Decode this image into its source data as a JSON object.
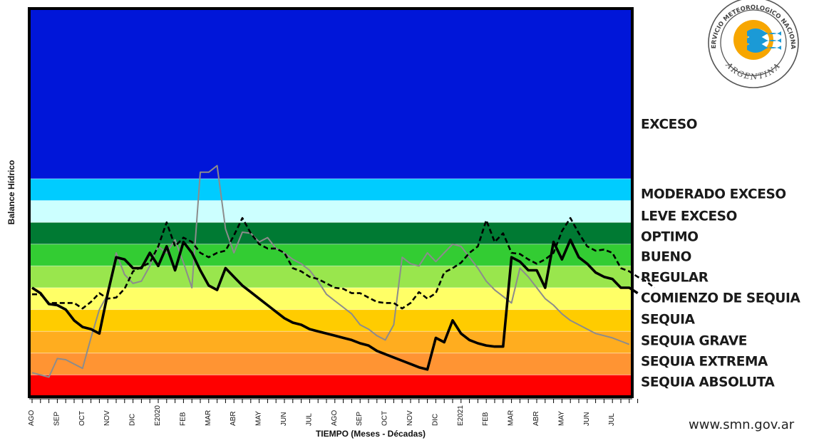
{
  "chart_data": {
    "type": "line",
    "xlabel": "TIEMPO (Meses - Décadas)",
    "ylabel": "Balance Hídrico",
    "x_tick_labels": [
      "AGO",
      "SEP",
      "OCT",
      "NOV",
      "DIC",
      "E2020",
      "FEB",
      "MAR",
      "ABR",
      "MAY",
      "JUN",
      "JUL",
      "AGO",
      "SEP",
      "OCT",
      "NOV",
      "DIC",
      "E2021",
      "FEB",
      "MAR",
      "ABR",
      "MAY",
      "JUN",
      "JUL"
    ],
    "decade_index_range": [
      0,
      72
    ],
    "y_scale": "category bands (Balance Hídrico level, 0 = bottom of SEQUIA ABSOLUTA, 19 = top of EXCESO)",
    "ylim": [
      0,
      19
    ],
    "bands": [
      {
        "label": "SEQUIA ABSOLUTA",
        "from": 0,
        "to": 1,
        "color": "#ff0000"
      },
      {
        "label": "SEQUIA EXTREMA",
        "from": 1,
        "to": 2,
        "color": "#ff9433"
      },
      {
        "label": "SEQUIA GRAVE",
        "from": 2,
        "to": 3,
        "color": "#ffad1f"
      },
      {
        "label": "SEQUIA",
        "from": 3,
        "to": 4,
        "color": "#ffcc00"
      },
      {
        "label": "COMIENZO DE SEQUIA",
        "from": 4,
        "to": 5,
        "color": "#ffff66"
      },
      {
        "label": "REGULAR",
        "from": 5,
        "to": 6,
        "color": "#99e64d"
      },
      {
        "label": "BUENO",
        "from": 6,
        "to": 7,
        "color": "#33cc33"
      },
      {
        "label": "OPTIMO",
        "from": 7,
        "to": 8,
        "color": "#007a33"
      },
      {
        "label": "LEVE EXCESO",
        "from": 8,
        "to": 9,
        "color": "#ccffff"
      },
      {
        "label": "MODERADO EXCESO",
        "from": 9,
        "to": 10,
        "color": "#00ccff"
      },
      {
        "label": "EXCESO",
        "from": 10,
        "to": 19,
        "color": "#0016d9"
      }
    ],
    "series": [
      {
        "style": "solid-black-thick",
        "color": "#000000",
        "points": [
          [
            0,
            5.0
          ],
          [
            1,
            4.75
          ],
          [
            2,
            4.25
          ],
          [
            3,
            4.2
          ],
          [
            4,
            4.0
          ],
          [
            5,
            3.5
          ],
          [
            6,
            3.2
          ],
          [
            7,
            3.1
          ],
          [
            8,
            2.9
          ],
          [
            9,
            4.75
          ],
          [
            10,
            6.4
          ],
          [
            11,
            6.3
          ],
          [
            12,
            5.9
          ],
          [
            13,
            5.9
          ],
          [
            14,
            6.6
          ],
          [
            15,
            6.0
          ],
          [
            16,
            6.9
          ],
          [
            17,
            5.8
          ],
          [
            18,
            7.1
          ],
          [
            19,
            6.6
          ],
          [
            20,
            5.8
          ],
          [
            21,
            5.1
          ],
          [
            22,
            4.9
          ],
          [
            23,
            5.9
          ],
          [
            24,
            5.5
          ],
          [
            25,
            5.1
          ],
          [
            26,
            4.8
          ],
          [
            27,
            4.5
          ],
          [
            28,
            4.2
          ],
          [
            29,
            3.9
          ],
          [
            30,
            3.6
          ],
          [
            31,
            3.4
          ],
          [
            32,
            3.3
          ],
          [
            33,
            3.1
          ],
          [
            34,
            3.0
          ],
          [
            35,
            2.9
          ],
          [
            36,
            2.8
          ],
          [
            37,
            2.7
          ],
          [
            38,
            2.6
          ],
          [
            39,
            2.45
          ],
          [
            40,
            2.35
          ],
          [
            41,
            2.1
          ],
          [
            42,
            1.95
          ],
          [
            43,
            1.8
          ],
          [
            44,
            1.65
          ],
          [
            45,
            1.5
          ],
          [
            46,
            1.35
          ],
          [
            47,
            1.25
          ],
          [
            48,
            2.7
          ],
          [
            49,
            2.5
          ],
          [
            50,
            3.5
          ],
          [
            51,
            2.9
          ],
          [
            52,
            2.6
          ],
          [
            53,
            2.45
          ],
          [
            54,
            2.35
          ],
          [
            55,
            2.3
          ],
          [
            56,
            2.3
          ],
          [
            57,
            6.4
          ],
          [
            58,
            6.2
          ],
          [
            59,
            5.8
          ],
          [
            60,
            5.8
          ],
          [
            61,
            5.0
          ],
          [
            62,
            7.1
          ],
          [
            63,
            6.3
          ],
          [
            64,
            7.2
          ],
          [
            65,
            6.4
          ],
          [
            66,
            6.1
          ],
          [
            67,
            5.7
          ],
          [
            68,
            5.5
          ],
          [
            69,
            5.4
          ],
          [
            70,
            5.0
          ],
          [
            71,
            5.0
          ],
          [
            72,
            4.75
          ]
        ]
      },
      {
        "style": "dashed-black",
        "color": "#000000",
        "points": [
          [
            0,
            4.7
          ],
          [
            1,
            4.7
          ],
          [
            2,
            4.3
          ],
          [
            3,
            4.3
          ],
          [
            4,
            4.3
          ],
          [
            5,
            4.3
          ],
          [
            6,
            4.05
          ],
          [
            7,
            4.35
          ],
          [
            8,
            4.75
          ],
          [
            9,
            4.5
          ],
          [
            10,
            4.55
          ],
          [
            11,
            4.95
          ],
          [
            12,
            5.75
          ],
          [
            13,
            5.95
          ],
          [
            14,
            6.15
          ],
          [
            15,
            6.9
          ],
          [
            16,
            8.0
          ],
          [
            17,
            6.9
          ],
          [
            18,
            7.3
          ],
          [
            19,
            7.1
          ],
          [
            20,
            6.6
          ],
          [
            21,
            6.4
          ],
          [
            22,
            6.6
          ],
          [
            23,
            6.7
          ],
          [
            24,
            7.4
          ],
          [
            25,
            8.2
          ],
          [
            26,
            7.5
          ],
          [
            27,
            7.0
          ],
          [
            28,
            6.8
          ],
          [
            29,
            6.8
          ],
          [
            30,
            6.6
          ],
          [
            31,
            5.9
          ],
          [
            32,
            5.75
          ],
          [
            33,
            5.5
          ],
          [
            34,
            5.4
          ],
          [
            35,
            5.2
          ],
          [
            36,
            5.0
          ],
          [
            37,
            4.95
          ],
          [
            38,
            4.75
          ],
          [
            39,
            4.75
          ],
          [
            40,
            4.55
          ],
          [
            41,
            4.35
          ],
          [
            42,
            4.3
          ],
          [
            43,
            4.3
          ],
          [
            44,
            4.05
          ],
          [
            45,
            4.3
          ],
          [
            46,
            4.8
          ],
          [
            47,
            4.5
          ],
          [
            48,
            4.75
          ],
          [
            49,
            5.7
          ],
          [
            50,
            5.9
          ],
          [
            51,
            6.15
          ],
          [
            52,
            6.6
          ],
          [
            53,
            6.9
          ],
          [
            54,
            8.1
          ],
          [
            55,
            7.1
          ],
          [
            56,
            7.5
          ],
          [
            57,
            6.6
          ],
          [
            58,
            6.55
          ],
          [
            59,
            6.3
          ],
          [
            60,
            6.1
          ],
          [
            61,
            6.3
          ],
          [
            62,
            6.6
          ],
          [
            63,
            7.6
          ],
          [
            64,
            8.2
          ],
          [
            65,
            7.5
          ],
          [
            66,
            6.9
          ],
          [
            67,
            6.7
          ],
          [
            68,
            6.75
          ],
          [
            69,
            6.6
          ],
          [
            70,
            5.9
          ],
          [
            71,
            5.75
          ],
          [
            72,
            5.5
          ],
          [
            73,
            5.3
          ],
          [
            74,
            5.0
          ]
        ]
      },
      {
        "style": "solid-gray",
        "color": "#8c8c8c",
        "points": [
          [
            0,
            1.1
          ],
          [
            1,
            1.0
          ],
          [
            2,
            0.9
          ],
          [
            3,
            1.75
          ],
          [
            4,
            1.7
          ],
          [
            5,
            1.5
          ],
          [
            6,
            1.3
          ],
          [
            7,
            2.7
          ],
          [
            8,
            4.0
          ],
          [
            9,
            4.7
          ],
          [
            10,
            6.6
          ],
          [
            11,
            5.6
          ],
          [
            12,
            5.2
          ],
          [
            13,
            5.3
          ],
          [
            14,
            6.0
          ],
          [
            15,
            6.9
          ],
          [
            16,
            6.6
          ],
          [
            17,
            7.2
          ],
          [
            18,
            6.15
          ],
          [
            19,
            5.0
          ],
          [
            20,
            10.3
          ],
          [
            21,
            10.3
          ],
          [
            22,
            10.6
          ],
          [
            23,
            7.7
          ],
          [
            24,
            6.6
          ],
          [
            25,
            7.55
          ],
          [
            26,
            7.5
          ],
          [
            27,
            7.1
          ],
          [
            28,
            7.3
          ],
          [
            29,
            6.8
          ],
          [
            30,
            6.6
          ],
          [
            31,
            6.3
          ],
          [
            32,
            6.1
          ],
          [
            33,
            5.8
          ],
          [
            34,
            5.3
          ],
          [
            35,
            4.7
          ],
          [
            36,
            4.4
          ],
          [
            37,
            4.1
          ],
          [
            38,
            3.8
          ],
          [
            39,
            3.3
          ],
          [
            40,
            3.1
          ],
          [
            41,
            2.8
          ],
          [
            42,
            2.6
          ],
          [
            43,
            3.3
          ],
          [
            44,
            6.4
          ],
          [
            45,
            6.1
          ],
          [
            46,
            6.0
          ],
          [
            47,
            6.6
          ],
          [
            48,
            6.2
          ],
          [
            49,
            6.6
          ],
          [
            50,
            7.0
          ],
          [
            51,
            6.9
          ],
          [
            52,
            6.4
          ],
          [
            53,
            5.9
          ],
          [
            54,
            5.3
          ],
          [
            55,
            4.9
          ],
          [
            56,
            4.6
          ],
          [
            57,
            4.3
          ],
          [
            58,
            5.9
          ],
          [
            59,
            5.5
          ],
          [
            60,
            5.0
          ],
          [
            61,
            4.5
          ],
          [
            62,
            4.2
          ],
          [
            63,
            3.8
          ],
          [
            64,
            3.5
          ],
          [
            65,
            3.3
          ],
          [
            66,
            3.1
          ],
          [
            67,
            2.9
          ],
          [
            68,
            2.8
          ],
          [
            69,
            2.7
          ],
          [
            70,
            2.55
          ],
          [
            71,
            2.4
          ]
        ]
      }
    ],
    "legend": "category labels at right",
    "grid": false
  },
  "category_labels": [
    "EXCESO",
    "MODERADO EXCESO",
    "LEVE EXCESO",
    "OPTIMO",
    "BUENO",
    "REGULAR",
    "COMIENZO DE SEQUIA",
    "SEQUIA",
    "SEQUIA GRAVE",
    "SEQUIA EXTREMA",
    "SEQUIA ABSOLUTA"
  ],
  "website": "www.smn.gov.ar",
  "logo": {
    "name": "smn-logo-icon",
    "text_top": "SERVICIO METEOROLOGICO NACIONAL",
    "text_bottom": "ARGENTINA",
    "colors": {
      "sun": "#f7a600",
      "wave": "#1b9ad6"
    }
  }
}
